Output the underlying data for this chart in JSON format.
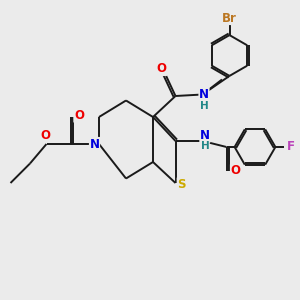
{
  "bg_color": "#ebebeb",
  "bond_color": "#1a1a1a",
  "atom_colors": {
    "N": "#0000dd",
    "O": "#ee0000",
    "S": "#ccaa00",
    "F": "#bb44bb",
    "Br": "#bb7722",
    "H_amide": "#228888"
  },
  "lw": 1.4,
  "dbo": 0.055,
  "fs": 8.5
}
